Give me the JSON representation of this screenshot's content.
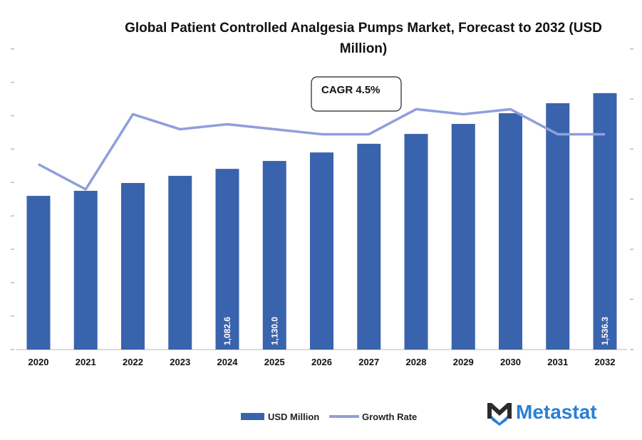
{
  "chart_data": {
    "type": "bar",
    "title_line1": "Global Patient Controlled Analgesia Pumps Market, Forecast to 2032 (USD",
    "title_line2": "Million)",
    "categories": [
      "2020",
      "2021",
      "2022",
      "2023",
      "2024",
      "2025",
      "2026",
      "2027",
      "2028",
      "2029",
      "2030",
      "2031",
      "2032"
    ],
    "series": [
      {
        "name": "USD Million",
        "type": "bar",
        "axis": "left",
        "color": "#3a63ad",
        "values": [
          921,
          951,
          998,
          1041,
          1082.6,
          1130.0,
          1181,
          1233,
          1292,
          1352,
          1416,
          1476,
          1536.3
        ],
        "data_labels": {
          "2024": "1,082.6",
          "2025": "1,130.0",
          "2032": "1,536.3"
        }
      },
      {
        "name": "Growth Rate",
        "type": "line",
        "axis": "right",
        "color": "#8f9fdb",
        "values": [
          3.7,
          3.2,
          4.7,
          4.4,
          4.5,
          4.4,
          4.3,
          4.3,
          4.8,
          4.7,
          4.8,
          4.3,
          4.3
        ]
      }
    ],
    "ylim": [
      0,
      1800
    ],
    "y2lim": [
      0,
      6
    ],
    "grid": false,
    "legend": "bottom",
    "annotation": "CAGR 4.5%"
  },
  "brand": {
    "name": "Metastat",
    "color": "#2a7fd4"
  }
}
